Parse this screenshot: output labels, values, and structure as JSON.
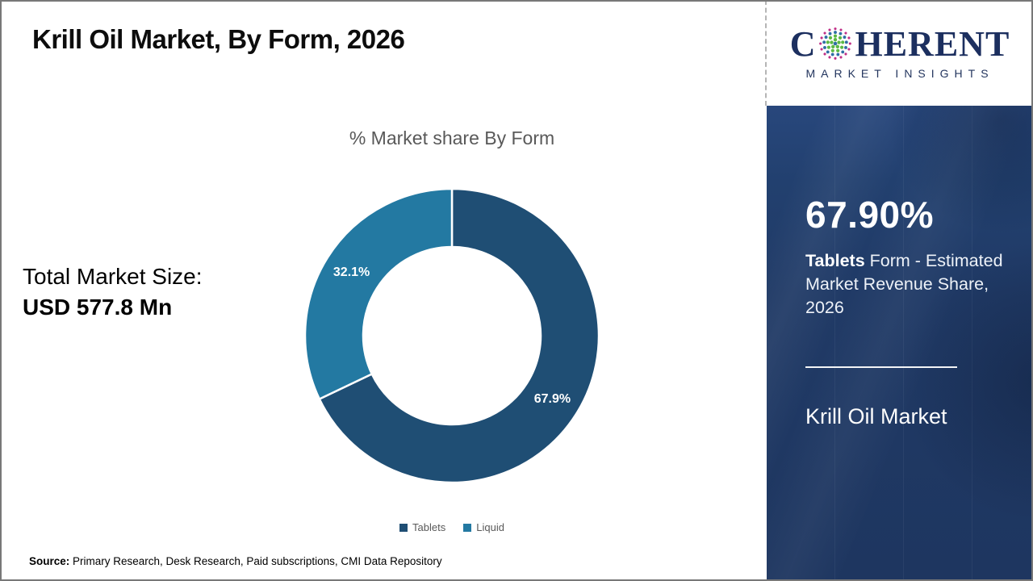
{
  "header": {
    "title": "Krill Oil Market, By Form, 2026"
  },
  "logo": {
    "brand_first_letter": "C",
    "brand_rest": "HERENT",
    "tagline": "MARKET INSIGHTS",
    "text_color": "#1c2f5f",
    "globe_colors": {
      "outer_ring": "#bf2e87",
      "middle_ring": "#2f6ea5",
      "inner": "#5cb944"
    }
  },
  "left_column": {
    "total_label": "Total Market Size:",
    "total_value": "USD 577.8 Mn"
  },
  "chart_data": {
    "type": "pie",
    "subtype": "donut",
    "title": "% Market share By Form",
    "categories": [
      "Tablets",
      "Liquid"
    ],
    "values": [
      67.9,
      32.1
    ],
    "data_labels": [
      "67.9%",
      "32.1%"
    ],
    "colors": [
      "#1f4e74",
      "#2379a2"
    ],
    "start_angle_deg": 0,
    "direction": "clockwise",
    "inner_radius_ratio": 0.6,
    "legend_position": "bottom",
    "title_color": "#595959",
    "label_color": "#ffffff"
  },
  "panel": {
    "big_value": "67.90%",
    "desc_bold": "Tablets",
    "desc_rest": " Form - Estimated Market Revenue Share, 2026",
    "market_name": "Krill Oil Market",
    "bg_color": "#203a66"
  },
  "footer": {
    "source_label": "Source:",
    "source_text": " Primary Research, Desk Research, Paid subscriptions, CMI Data Repository"
  }
}
